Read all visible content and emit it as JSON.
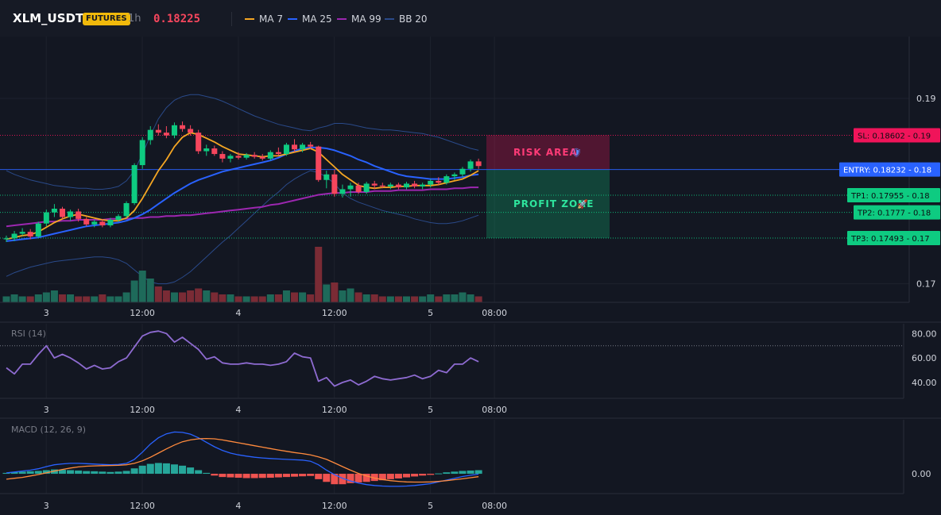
{
  "header": {
    "symbol": "XLM_USDT",
    "badge": "FUTURES",
    "timeframe": "1h",
    "price": "0.18225",
    "indicators": [
      {
        "label": "MA 7",
        "color": "#f5a623"
      },
      {
        "label": "MA 25",
        "color": "#2962ff"
      },
      {
        "label": "MA 99",
        "color": "#9c27b0"
      },
      {
        "label": "BB 20",
        "color": "#2a4a8a"
      }
    ]
  },
  "colors": {
    "up": "#0ecb81",
    "down": "#f6465d",
    "vol_up": "#1e6a5a",
    "vol_down": "#7a2b35"
  },
  "chart_data": [
    {
      "type": "candlestick",
      "title": "",
      "x_tick_labels": [
        "3",
        "12:00",
        "4",
        "12:00",
        "5",
        "08:00"
      ],
      "x_tick_index": [
        3,
        15,
        27,
        39,
        51,
        59
      ],
      "y_tick_labels": [
        "0.19",
        "0.17"
      ],
      "y_tick_values": [
        0.19,
        0.17
      ],
      "ylim": [
        0.168,
        0.1965
      ],
      "grid": true,
      "candles": [
        [
          0.1748,
          0.1752,
          0.1745,
          0.1749
        ],
        [
          0.1749,
          0.1757,
          0.1746,
          0.1754
        ],
        [
          0.1754,
          0.176,
          0.1752,
          0.1756
        ],
        [
          0.1756,
          0.1759,
          0.1748,
          0.1751
        ],
        [
          0.1751,
          0.1767,
          0.1749,
          0.1765
        ],
        [
          0.1765,
          0.178,
          0.1762,
          0.1777
        ],
        [
          0.1777,
          0.1786,
          0.1772,
          0.1781
        ],
        [
          0.1781,
          0.1783,
          0.177,
          0.1772
        ],
        [
          0.1772,
          0.178,
          0.1768,
          0.1778
        ],
        [
          0.1778,
          0.1781,
          0.1767,
          0.177
        ],
        [
          0.177,
          0.1772,
          0.1762,
          0.1764
        ],
        [
          0.1764,
          0.1769,
          0.1761,
          0.1767
        ],
        [
          0.1767,
          0.177,
          0.1761,
          0.1763
        ],
        [
          0.1763,
          0.1771,
          0.1761,
          0.1769
        ],
        [
          0.1769,
          0.1775,
          0.1767,
          0.1773
        ],
        [
          0.1773,
          0.1789,
          0.1771,
          0.1787
        ],
        [
          0.1787,
          0.183,
          0.1785,
          0.1828
        ],
        [
          0.1828,
          0.1858,
          0.1824,
          0.1855
        ],
        [
          0.1855,
          0.187,
          0.185,
          0.1866
        ],
        [
          0.1866,
          0.1872,
          0.186,
          0.1863
        ],
        [
          0.1863,
          0.187,
          0.1857,
          0.186
        ],
        [
          0.186,
          0.1874,
          0.1857,
          0.1871
        ],
        [
          0.1871,
          0.1875,
          0.1864,
          0.1867
        ],
        [
          0.1867,
          0.1871,
          0.186,
          0.1863
        ],
        [
          0.1863,
          0.1866,
          0.184,
          0.1843
        ],
        [
          0.1843,
          0.185,
          0.1838,
          0.1846
        ],
        [
          0.1846,
          0.1849,
          0.1838,
          0.184
        ],
        [
          0.184,
          0.1843,
          0.1831,
          0.1835
        ],
        [
          0.1835,
          0.184,
          0.1831,
          0.1838
        ],
        [
          0.1838,
          0.1842,
          0.1834,
          0.1836
        ],
        [
          0.1836,
          0.1841,
          0.1834,
          0.1839
        ],
        [
          0.1839,
          0.1842,
          0.1835,
          0.1837
        ],
        [
          0.1837,
          0.184,
          0.1833,
          0.1835
        ],
        [
          0.1835,
          0.1844,
          0.1833,
          0.1842
        ],
        [
          0.1842,
          0.1847,
          0.1838,
          0.184
        ],
        [
          0.184,
          0.1852,
          0.1838,
          0.185
        ],
        [
          0.185,
          0.1856,
          0.1842,
          0.1845
        ],
        [
          0.1845,
          0.1852,
          0.1842,
          0.185
        ],
        [
          0.185,
          0.1853,
          0.1845,
          0.1848
        ],
        [
          0.1848,
          0.1849,
          0.181,
          0.1812
        ],
        [
          0.1812,
          0.1822,
          0.1803,
          0.1818
        ],
        [
          0.1818,
          0.1823,
          0.1794,
          0.1797
        ],
        [
          0.1797,
          0.1807,
          0.1793,
          0.1802
        ],
        [
          0.1802,
          0.1809,
          0.1794,
          0.1806
        ],
        [
          0.1806,
          0.1809,
          0.1797,
          0.1799
        ],
        [
          0.1799,
          0.181,
          0.1797,
          0.1808
        ],
        [
          0.1808,
          0.1811,
          0.1802,
          0.1806
        ],
        [
          0.1806,
          0.1809,
          0.1803,
          0.1805
        ],
        [
          0.1805,
          0.1809,
          0.1802,
          0.1807
        ],
        [
          0.1807,
          0.1809,
          0.1802,
          0.1804
        ],
        [
          0.1804,
          0.181,
          0.1802,
          0.1808
        ],
        [
          0.1808,
          0.1811,
          0.1803,
          0.1805
        ],
        [
          0.1805,
          0.1809,
          0.1802,
          0.1807
        ],
        [
          0.1807,
          0.1813,
          0.1804,
          0.1811
        ],
        [
          0.1811,
          0.1815,
          0.1806,
          0.1809
        ],
        [
          0.1809,
          0.1818,
          0.1807,
          0.1816
        ],
        [
          0.1816,
          0.182,
          0.1812,
          0.1818
        ],
        [
          0.1818,
          0.1826,
          0.1815,
          0.1824
        ],
        [
          0.1824,
          0.1834,
          0.1821,
          0.1832
        ],
        [
          0.1832,
          0.1835,
          0.1824,
          0.1827
        ]
      ],
      "volume": [
        3,
        4,
        3,
        3,
        4,
        5,
        6,
        4,
        4,
        3,
        3,
        3,
        4,
        3,
        3,
        5,
        11,
        16,
        12,
        8,
        6,
        5,
        5,
        6,
        7,
        6,
        5,
        4,
        4,
        3,
        3,
        3,
        3,
        4,
        4,
        6,
        5,
        5,
        4,
        28,
        9,
        10,
        6,
        7,
        5,
        4,
        4,
        3,
        3,
        3,
        3,
        3,
        3,
        4,
        3,
        4,
        4,
        5,
        4,
        3
      ],
      "ma7": [
        0.1748,
        0.175,
        0.1752,
        0.1753,
        0.1756,
        0.1761,
        0.1766,
        0.177,
        0.1773,
        0.1775,
        0.1773,
        0.1771,
        0.1769,
        0.1768,
        0.1768,
        0.1771,
        0.1779,
        0.1792,
        0.1807,
        0.1822,
        0.1834,
        0.1848,
        0.1858,
        0.1863,
        0.1861,
        0.1857,
        0.1853,
        0.1848,
        0.1844,
        0.184,
        0.1839,
        0.1838,
        0.1837,
        0.1838,
        0.1838,
        0.184,
        0.1842,
        0.1844,
        0.1846,
        0.1842,
        0.1834,
        0.1826,
        0.1818,
        0.1812,
        0.1806,
        0.1804,
        0.1803,
        0.1804,
        0.1804,
        0.1805,
        0.1805,
        0.1806,
        0.1806,
        0.1806,
        0.1807,
        0.1809,
        0.1811,
        0.1813,
        0.1817,
        0.1822
      ],
      "ma25": [
        0.1746,
        0.1747,
        0.1748,
        0.1749,
        0.175,
        0.1752,
        0.1754,
        0.1756,
        0.1758,
        0.176,
        0.1762,
        0.1763,
        0.1764,
        0.1765,
        0.1766,
        0.1768,
        0.1771,
        0.1775,
        0.178,
        0.1786,
        0.1792,
        0.1798,
        0.1803,
        0.1808,
        0.1812,
        0.1815,
        0.1818,
        0.1821,
        0.1823,
        0.1825,
        0.1827,
        0.1829,
        0.1831,
        0.1833,
        0.1836,
        0.184,
        0.1843,
        0.1846,
        0.1847,
        0.1847,
        0.1846,
        0.1844,
        0.1841,
        0.1838,
        0.1834,
        0.1831,
        0.1827,
        0.1824,
        0.1821,
        0.1818,
        0.1816,
        0.1815,
        0.1814,
        0.1813,
        0.1813,
        0.1813,
        0.1814,
        0.1815,
        0.1817,
        0.1818
      ],
      "ma99": [
        0.1762,
        0.1763,
        0.1764,
        0.1765,
        0.1766,
        0.1767,
        0.1767,
        0.1768,
        0.1768,
        0.1769,
        0.1769,
        0.1769,
        0.1769,
        0.177,
        0.177,
        0.177,
        0.1771,
        0.1771,
        0.1772,
        0.1772,
        0.1773,
        0.1773,
        0.1774,
        0.1774,
        0.1775,
        0.1776,
        0.1777,
        0.1778,
        0.1779,
        0.178,
        0.1781,
        0.1782,
        0.1783,
        0.1785,
        0.1786,
        0.1788,
        0.179,
        0.1792,
        0.1794,
        0.1796,
        0.1797,
        0.1798,
        0.1798,
        0.1799,
        0.1799,
        0.1799,
        0.18,
        0.18,
        0.18,
        0.1801,
        0.1801,
        0.1801,
        0.1801,
        0.1802,
        0.1802,
        0.1802,
        0.1803,
        0.1803,
        0.1804,
        0.1804
      ],
      "bb_upper": [
        0.1822,
        0.1818,
        0.1815,
        0.1812,
        0.181,
        0.1808,
        0.1806,
        0.1805,
        0.1804,
        0.1803,
        0.1803,
        0.1802,
        0.1802,
        0.1803,
        0.1805,
        0.1811,
        0.1822,
        0.184,
        0.186,
        0.1878,
        0.189,
        0.1898,
        0.1902,
        0.1904,
        0.1904,
        0.1902,
        0.19,
        0.1897,
        0.1893,
        0.1889,
        0.1885,
        0.1881,
        0.1878,
        0.1875,
        0.1872,
        0.187,
        0.1868,
        0.1866,
        0.1865,
        0.1868,
        0.187,
        0.1873,
        0.1873,
        0.1872,
        0.187,
        0.1868,
        0.1867,
        0.1866,
        0.1866,
        0.1865,
        0.1864,
        0.1863,
        0.1862,
        0.186,
        0.1858,
        0.1855,
        0.1852,
        0.1849,
        0.1846,
        0.1844
      ],
      "bb_lower": [
        0.1708,
        0.1712,
        0.1715,
        0.1718,
        0.172,
        0.1722,
        0.1724,
        0.1725,
        0.1726,
        0.1727,
        0.1728,
        0.1729,
        0.1729,
        0.1728,
        0.1726,
        0.1722,
        0.1715,
        0.1708,
        0.1702,
        0.17,
        0.17,
        0.1702,
        0.1707,
        0.1713,
        0.1721,
        0.1729,
        0.1737,
        0.1745,
        0.1752,
        0.176,
        0.1768,
        0.1776,
        0.1784,
        0.1792,
        0.1799,
        0.1807,
        0.1813,
        0.1818,
        0.1822,
        0.182,
        0.1815,
        0.1808,
        0.1798,
        0.1792,
        0.1788,
        0.1785,
        0.1782,
        0.1779,
        0.1777,
        0.1775,
        0.1773,
        0.177,
        0.1768,
        0.1766,
        0.1765,
        0.1765,
        0.1766,
        0.1768,
        0.1771,
        0.1774
      ],
      "levels": [
        {
          "label": "SL: 0.18602 - 0.19",
          "value": 0.18602,
          "color": "#f0145a",
          "style": "dotted"
        },
        {
          "label": "ENTRY: 0.18232 - 0.18",
          "value": 0.18232,
          "color": "#2962ff",
          "style": "solid"
        },
        {
          "label": "TP1: 0.17955 - 0.18",
          "value": 0.17955,
          "color": "#0ecb81",
          "style": "dotted"
        },
        {
          "label": "TP2: 0.1777 - 0.18",
          "value": 0.1777,
          "color": "#0ecb81",
          "style": "dotted"
        },
        {
          "label": "TP3: 0.17493 - 0.17",
          "value": 0.17493,
          "color": "#0ecb81",
          "style": "dotted"
        }
      ],
      "zones": [
        {
          "label": "RISK AREA",
          "icon": "shield-icon",
          "from": 0.18602,
          "to": 0.18232,
          "color": "#f0145a"
        },
        {
          "label": "PROFIT ZONE",
          "icon": "rocket-icon",
          "from": 0.18232,
          "to": 0.17493,
          "color": "#0ecb81"
        }
      ]
    },
    {
      "type": "line",
      "title": "RSI (14)",
      "y_tick_labels": [
        "80.00",
        "60.00",
        "40.00"
      ],
      "y_tick_values": [
        80,
        60,
        40
      ],
      "ylim": [
        27,
        88
      ],
      "overbought": 70,
      "color": "#8e6bd1",
      "x_tick_labels": [
        "3",
        "12:00",
        "4",
        "12:00",
        "5",
        "08:00"
      ],
      "values": [
        52,
        47,
        55,
        55,
        63,
        70,
        60,
        63,
        60,
        56,
        51,
        54,
        51,
        52,
        57,
        60,
        69,
        78,
        81,
        82,
        80,
        73,
        77,
        72,
        67,
        59,
        61,
        56,
        55,
        55,
        56,
        55,
        55,
        54,
        55,
        57,
        64,
        61,
        60,
        41,
        44,
        37,
        40,
        42,
        38,
        41,
        45,
        43,
        42,
        43,
        44,
        46,
        43,
        45,
        50,
        48,
        55,
        55,
        60,
        57
      ]
    },
    {
      "type": "bar+line",
      "title": "MACD (12, 26, 9)",
      "y_tick_labels": [
        "0.00"
      ],
      "y_tick_values": [
        0
      ],
      "ylim": [
        -0.0011,
        0.003
      ],
      "x_tick_labels": [
        "3",
        "12:00",
        "4",
        "12:00",
        "5",
        "08:00"
      ],
      "histogram": [
        5e-05,
        0.0001,
        0.00012,
        0.00014,
        0.00016,
        0.0002,
        0.00024,
        0.00022,
        0.0002,
        0.00018,
        0.00015,
        0.00014,
        0.00012,
        0.0001,
        0.00012,
        0.00016,
        0.0003,
        0.00045,
        0.00055,
        0.0006,
        0.00058,
        0.00052,
        0.00045,
        0.00035,
        0.0002,
        5e-05,
        -0.0001,
        -0.00018,
        -0.0002,
        -0.00022,
        -0.00024,
        -0.00024,
        -0.00023,
        -0.00022,
        -0.0002,
        -0.00018,
        -0.00016,
        -0.00014,
        -0.00012,
        -0.0003,
        -0.00045,
        -0.00058,
        -0.00058,
        -0.00052,
        -0.00048,
        -0.00045,
        -0.0004,
        -0.00036,
        -0.0003,
        -0.00026,
        -0.0002,
        -0.00015,
        -0.0001,
        -6e-05,
        2e-05,
        8e-05,
        0.00012,
        0.00016,
        0.00018,
        0.0002
      ],
      "macd": [
        5e-05,
        0.0001,
        0.00015,
        0.0002,
        0.00028,
        0.0004,
        0.0005,
        0.00055,
        0.00058,
        0.00058,
        0.00056,
        0.00054,
        0.00052,
        0.0005,
        0.00052,
        0.00058,
        0.0008,
        0.0012,
        0.00165,
        0.002,
        0.00222,
        0.00232,
        0.0023,
        0.0022,
        0.002,
        0.00175,
        0.0015,
        0.0013,
        0.00115,
        0.00105,
        0.00098,
        0.00092,
        0.00088,
        0.00085,
        0.00082,
        0.0008,
        0.00078,
        0.00076,
        0.0007,
        0.0005,
        0.0002,
        -5e-05,
        -0.00025,
        -0.0004,
        -0.00052,
        -0.0006,
        -0.00065,
        -0.00068,
        -0.0007,
        -0.0007,
        -0.00068,
        -0.00065,
        -0.0006,
        -0.00055,
        -0.00045,
        -0.00035,
        -0.00025,
        -0.00015,
        -8e-05,
        -2e-05
      ],
      "signal": [
        -0.0003,
        -0.00025,
        -0.0002,
        -0.00012,
        -4e-05,
        5e-05,
        0.00015,
        0.00024,
        0.00032,
        0.00038,
        0.00042,
        0.00044,
        0.00045,
        0.00046,
        0.00047,
        0.0005,
        0.00058,
        0.00072,
        0.00092,
        0.00115,
        0.00138,
        0.0016,
        0.00178,
        0.00188,
        0.00194,
        0.00196,
        0.00194,
        0.00188,
        0.0018,
        0.00172,
        0.00164,
        0.00156,
        0.00148,
        0.0014,
        0.00132,
        0.00125,
        0.00118,
        0.00112,
        0.00105,
        0.00094,
        0.0008,
        0.0006,
        0.0004,
        0.0002,
        2e-05,
        -0.00012,
        -0.00024,
        -0.00032,
        -0.00038,
        -0.00042,
        -0.00045,
        -0.00046,
        -0.00046,
        -0.00045,
        -0.00042,
        -0.00038,
        -0.00033,
        -0.00028,
        -0.00022,
        -0.00016
      ],
      "hist_colors": {
        "pos": "#26a69a",
        "neg": "#ef5350"
      },
      "macd_color": "#2962ff",
      "signal_color": "#ff8a3d"
    }
  ]
}
